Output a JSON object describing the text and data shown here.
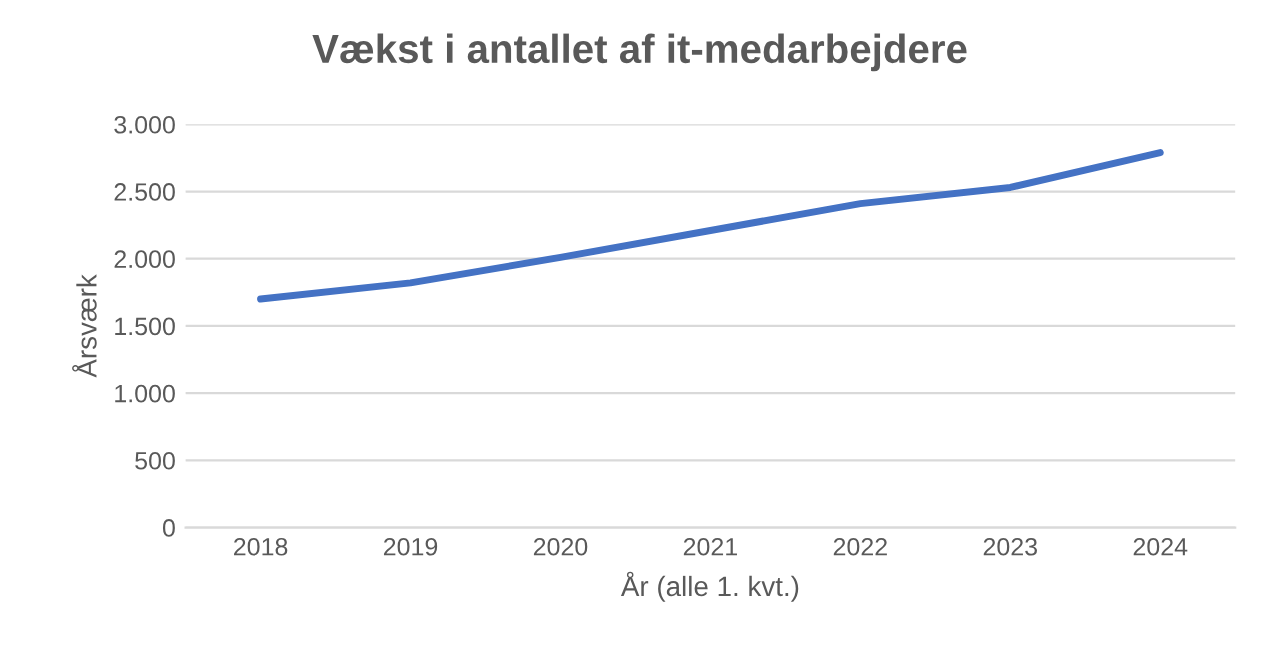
{
  "chart_data": {
    "type": "line",
    "title": "Vækst i antallet af it-medarbejdere",
    "xlabel": "År (alle 1. kvt.)",
    "ylabel": "Årsværk",
    "categories": [
      "2018",
      "2019",
      "2020",
      "2021",
      "2022",
      "2023",
      "2024"
    ],
    "series": [
      {
        "color": "#4472c4",
        "values": [
          1700,
          1820,
          2010,
          2210,
          2410,
          2530,
          2790
        ]
      }
    ],
    "ylim": [
      0,
      3000
    ],
    "yticks": [
      {
        "value": 0,
        "label": "0"
      },
      {
        "value": 500,
        "label": "500"
      },
      {
        "value": 1000,
        "label": "1.000"
      },
      {
        "value": 1500,
        "label": "1.500"
      },
      {
        "value": 2000,
        "label": "2.000"
      },
      {
        "value": 2500,
        "label": "2.500"
      },
      {
        "value": 3000,
        "label": "3.000"
      }
    ],
    "grid": "y",
    "marker": "none",
    "line_style": "solid"
  }
}
